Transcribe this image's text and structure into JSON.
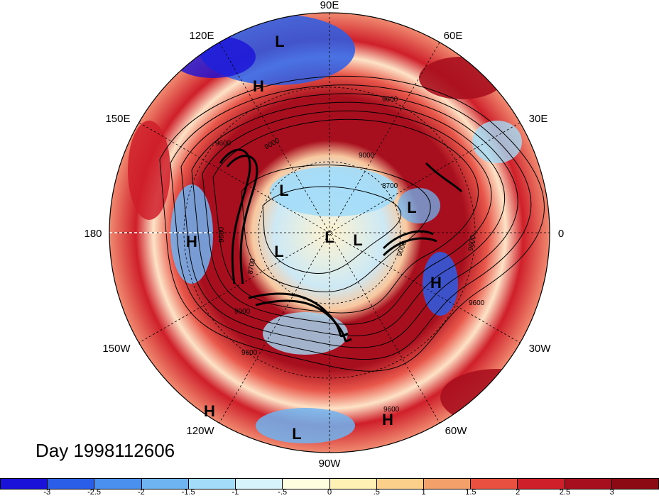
{
  "figure": {
    "date_label": "Day 1998112606",
    "longitude_labels": [
      "90E",
      "60E",
      "30E",
      "0",
      "30W",
      "60W",
      "90W",
      "120W",
      "150W",
      "180",
      "150E",
      "120E"
    ],
    "contour_labels": [
      "9600",
      "9600",
      "9600",
      "9600",
      "9000",
      "9000",
      "9000",
      "9000",
      "8700",
      "8700",
      "9600",
      "9600",
      "9600"
    ],
    "pressure_centers": [
      {
        "type": "L"
      },
      {
        "type": "H"
      },
      {
        "type": "L"
      },
      {
        "type": "L"
      },
      {
        "type": "L"
      },
      {
        "type": "L"
      },
      {
        "type": "L"
      },
      {
        "type": "H"
      },
      {
        "type": "H"
      },
      {
        "type": "H"
      },
      {
        "type": "H"
      },
      {
        "type": "L"
      }
    ]
  },
  "colorbar": {
    "tick_labels": [
      "-3",
      "-2.5",
      "-2",
      "-1.5",
      "-1",
      "-.5",
      "0",
      ".5",
      "1",
      "1.5",
      "2",
      "2.5",
      "3"
    ],
    "colors": [
      "#1a12d9",
      "#2a5ee8",
      "#4a90ee",
      "#6fb4f2",
      "#a2dcf8",
      "#d6f2fb",
      "#fffde0",
      "#fff0b3",
      "#fbd08a",
      "#f4a06a",
      "#ea5040",
      "#cf1f2a",
      "#a80f1e",
      "#8b0a14"
    ]
  }
}
